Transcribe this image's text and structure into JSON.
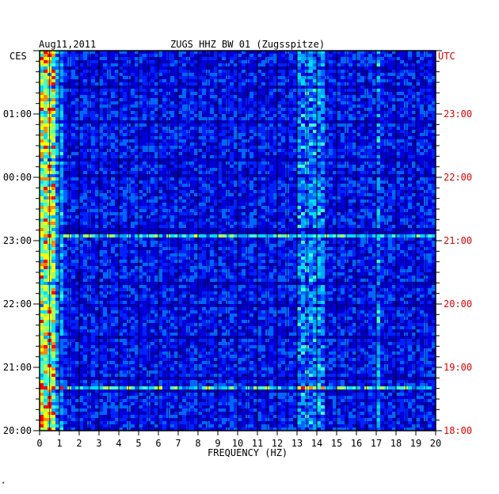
{
  "header": {
    "date": "Aug11,2011",
    "title": "ZUGS HHZ BW 01 (Zugsspitze)"
  },
  "footer_mark": "*",
  "colors": {
    "background": "#0000cc",
    "left_axis_label": "#000000",
    "right_axis_label": "#dd0000",
    "grid": "#000000"
  },
  "chart_data": {
    "type": "heatmap",
    "xlabel": "FREQUENCY (HZ)",
    "x_ticks": [
      "0",
      "1",
      "2",
      "3",
      "4",
      "5",
      "6",
      "7",
      "8",
      "9",
      "10",
      "11",
      "12",
      "13",
      "14",
      "15",
      "16",
      "17",
      "18",
      "19",
      "20"
    ],
    "xlim": [
      0,
      20
    ],
    "left_axis_title": "CES",
    "left_ticks": [
      "01:00",
      "00:00",
      "23:00",
      "22:00",
      "21:00",
      "20:00"
    ],
    "right_axis_title": "UTC",
    "right_ticks": [
      "23:00",
      "22:00",
      "21:00",
      "20:00",
      "19:00",
      "18:00"
    ],
    "time_range_hours": 6,
    "grid": true,
    "energy_bands_hz": [
      [
        0,
        1
      ],
      [
        13,
        14.2
      ],
      [
        16.9,
        17.1
      ]
    ]
  }
}
